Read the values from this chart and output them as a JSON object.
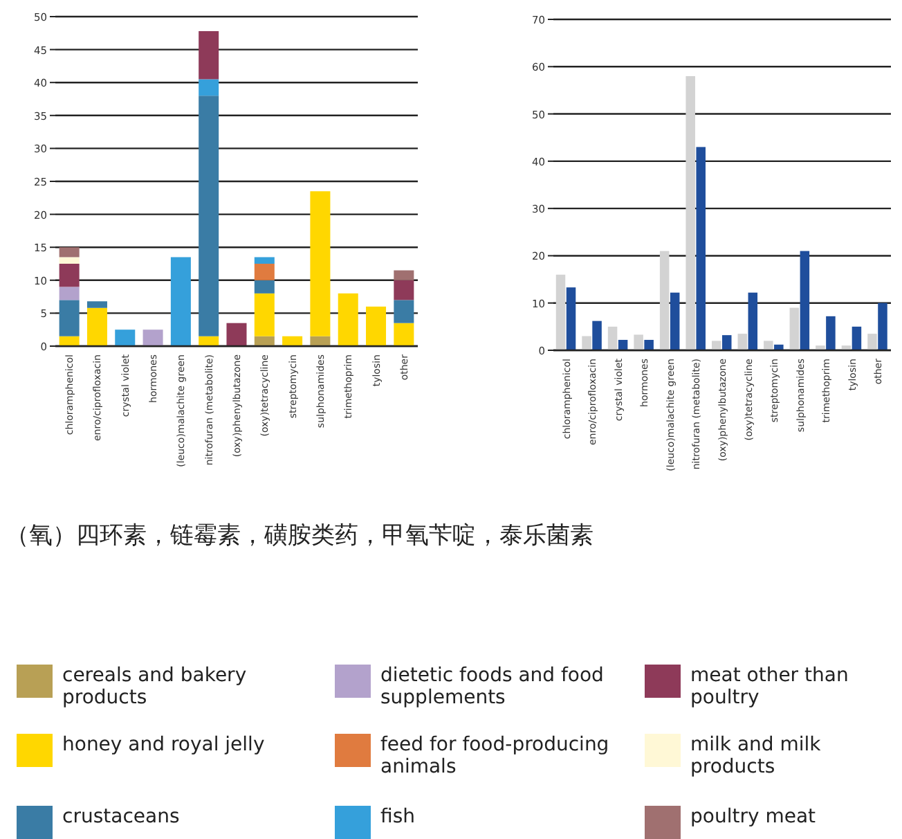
{
  "chart_data": [
    {
      "type": "bar",
      "stacked": true,
      "categories": [
        "chloramphenicol",
        "enro/ciprofloxacin",
        "crystal violet",
        "hormones",
        "(leuco)malachite green",
        "nitrofuran (metabolite)",
        "(oxy)phenylbutazone",
        "(oxy)tetracycline",
        "streptomycin",
        "sulphonamides",
        "trimethoprim",
        "tylosin",
        "other"
      ],
      "ylim": [
        0,
        50
      ],
      "yticks": [
        0,
        5,
        10,
        15,
        20,
        25,
        30,
        35,
        40,
        45,
        50
      ],
      "grid": "y",
      "legend": "bottom",
      "series": [
        {
          "name": "cereals and bakery products",
          "color": "#b8a055",
          "values": [
            null,
            null,
            null,
            null,
            null,
            null,
            null,
            1.5,
            null,
            1.5,
            null,
            null,
            null
          ]
        },
        {
          "name": "honey and royal jelly",
          "color": "#ffd700",
          "values": [
            1.5,
            5.8,
            null,
            null,
            null,
            1.5,
            null,
            6.5,
            1.5,
            22,
            8,
            6,
            3.5
          ]
        },
        {
          "name": "crustaceans",
          "color": "#3a7ca5",
          "values": [
            5.5,
            1,
            null,
            null,
            null,
            36.5,
            null,
            2,
            null,
            null,
            null,
            null,
            3.5
          ]
        },
        {
          "name": "dietetic foods and food supplements",
          "color": "#b3a2cc",
          "values": [
            2,
            null,
            null,
            2.5,
            null,
            null,
            null,
            null,
            null,
            null,
            null,
            null,
            null
          ]
        },
        {
          "name": "feed for food-producing animals",
          "color": "#e07b3f",
          "values": [
            null,
            null,
            null,
            null,
            null,
            null,
            null,
            2.5,
            null,
            null,
            null,
            null,
            null
          ]
        },
        {
          "name": "fish",
          "color": "#35a0db",
          "values": [
            null,
            null,
            2.5,
            null,
            13.5,
            2.5,
            null,
            1,
            null,
            null,
            null,
            null,
            null
          ]
        },
        {
          "name": "meat other than poultry",
          "color": "#8e3a59",
          "values": [
            3.5,
            null,
            null,
            null,
            null,
            7.3,
            3.5,
            null,
            null,
            null,
            null,
            null,
            3
          ]
        },
        {
          "name": "milk and milk products",
          "color": "#fff8d6",
          "values": [
            1,
            null,
            null,
            null,
            null,
            null,
            null,
            null,
            null,
            null,
            null,
            null,
            null
          ]
        },
        {
          "name": "poultry meat",
          "color": "#a07070",
          "values": [
            1.5,
            null,
            null,
            null,
            null,
            null,
            null,
            null,
            null,
            null,
            null,
            null,
            1.5
          ]
        }
      ],
      "annotations": [
        "（氧）四环素，链霉素，磺胺类药，甲氧苄啶，泰乐菌素"
      ]
    },
    {
      "type": "bar",
      "categories": [
        "chloramphenicol",
        "enro/ciprofloxacin",
        "crystal violet",
        "hormones",
        "(leuco)malachite green",
        "nitrofuran (metabolite)",
        "(oxy)phenylbutazone",
        "(oxy)tetracycline",
        "streptomycin",
        "sulphonamides",
        "trimethoprim",
        "tylosin",
        "other"
      ],
      "ylim": [
        0,
        70
      ],
      "yticks": [
        0,
        10,
        20,
        30,
        40,
        50,
        60,
        70
      ],
      "grid": "y",
      "series": [
        {
          "color": "#d3d3d3",
          "values": [
            16,
            3,
            5,
            3.3,
            21,
            58,
            2,
            3.5,
            2,
            9,
            1,
            1,
            3.5
          ]
        },
        {
          "color": "#1f4e9c",
          "values": [
            13.3,
            6.2,
            2.2,
            2.2,
            12.2,
            43,
            3.2,
            12.2,
            1.2,
            21,
            7.2,
            5,
            10
          ]
        }
      ]
    }
  ]
}
